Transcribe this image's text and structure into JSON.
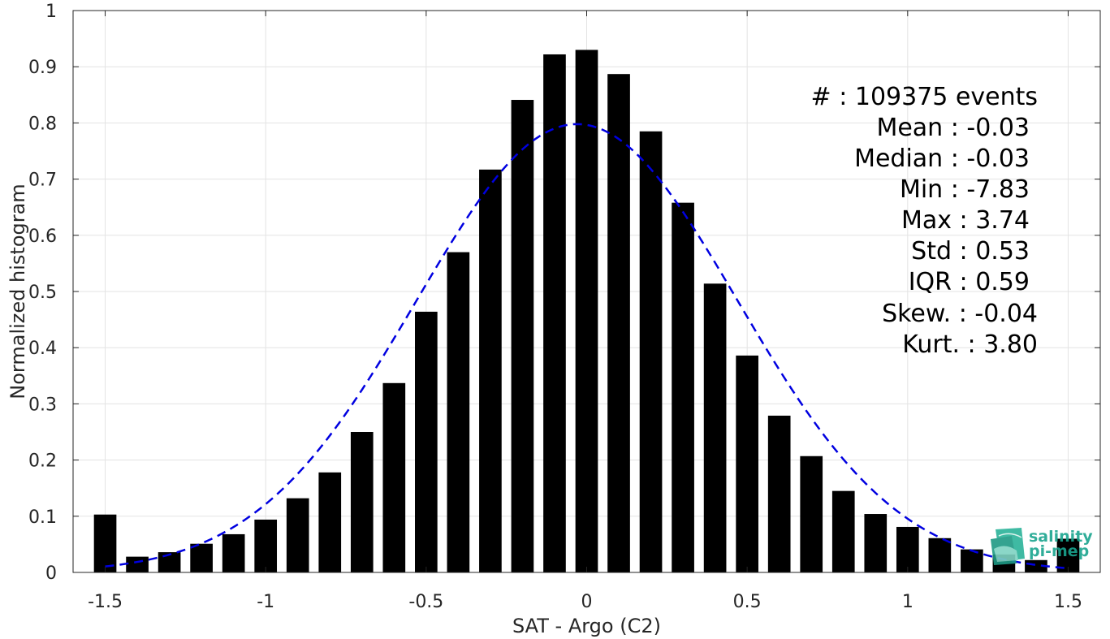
{
  "chart_data": {
    "type": "bar",
    "xlabel": "SAT - Argo (C2)",
    "ylabel": "Normalized histogram",
    "xlim": [
      -1.6,
      1.6
    ],
    "ylim": [
      0,
      1
    ],
    "xticks": [
      -1.5,
      -1,
      -0.5,
      0,
      0.5,
      1,
      1.5
    ],
    "xtick_labels": [
      "-1.5",
      "-1",
      "-0.5",
      "0",
      "0.5",
      "1",
      "1.5"
    ],
    "yticks": [
      0,
      0.1,
      0.2,
      0.3,
      0.4,
      0.5,
      0.6,
      0.7,
      0.8,
      0.9,
      1
    ],
    "ytick_labels": [
      "0",
      "0.1",
      "0.2",
      "0.3",
      "0.4",
      "0.5",
      "0.6",
      "0.7",
      "0.8",
      "0.9",
      "1"
    ],
    "grid": true,
    "bar_width": 0.07,
    "bars": {
      "x": [
        -1.5,
        -1.4,
        -1.3,
        -1.2,
        -1.1,
        -1.0,
        -0.9,
        -0.8,
        -0.7,
        -0.6,
        -0.5,
        -0.4,
        -0.3,
        -0.2,
        -0.1,
        0.0,
        0.1,
        0.2,
        0.3,
        0.4,
        0.5,
        0.6,
        0.7,
        0.8,
        0.9,
        1.0,
        1.1,
        1.2,
        1.3,
        1.4,
        1.5
      ],
      "values": [
        0.103,
        0.028,
        0.036,
        0.051,
        0.068,
        0.094,
        0.132,
        0.178,
        0.25,
        0.337,
        0.464,
        0.57,
        0.717,
        0.841,
        0.922,
        0.93,
        0.887,
        0.785,
        0.658,
        0.514,
        0.386,
        0.279,
        0.207,
        0.145,
        0.104,
        0.081,
        0.061,
        0.041,
        0.032,
        0.022,
        0.06
      ],
      "color": "#000000"
    },
    "fit": {
      "type": "gaussian",
      "mean": -0.03,
      "std": 0.5,
      "x_range": [
        -1.5,
        1.5
      ],
      "color": "#0000e0",
      "style": "dashed"
    },
    "annotations": [
      "#  : 109375 events",
      "Mean : -0.03",
      "Median : -0.03",
      "Min : -7.83",
      "Max : 3.74",
      "Std : 0.53",
      "IQR : 0.59",
      "Skew. : -0.04",
      "Kurt. : 3.80"
    ]
  },
  "logo": {
    "line1": "salinity",
    "line2": "pi-mep"
  }
}
